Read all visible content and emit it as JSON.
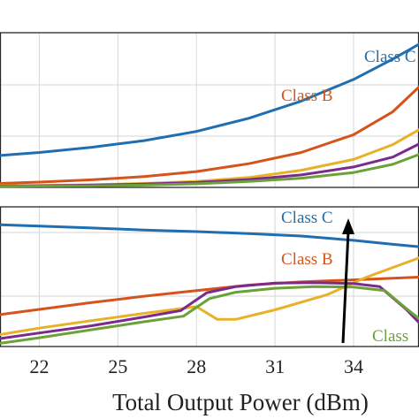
{
  "chart_data": [
    {
      "type": "line",
      "panel": "top",
      "xlabel": "Total Output Power (dBm)",
      "xlim": [
        20.5,
        36.5
      ],
      "ylim": [
        0,
        4.7
      ],
      "xticks": [
        22,
        25,
        28,
        31,
        34
      ],
      "grid": true,
      "series": [
        {
          "name": "Class C",
          "color": "#1f6eb0",
          "x": [
            20.5,
            22,
            24,
            26,
            28,
            30,
            32,
            34,
            35.5,
            36.5
          ],
          "y": [
            0.97,
            1.06,
            1.22,
            1.42,
            1.7,
            2.1,
            2.62,
            3.28,
            3.9,
            4.35
          ]
        },
        {
          "name": "Class B",
          "color": "#d4541c",
          "x": [
            20.5,
            22,
            24,
            26,
            28,
            30,
            32,
            34,
            35.5,
            36.5
          ],
          "y": [
            0.12,
            0.16,
            0.23,
            0.33,
            0.48,
            0.72,
            1.06,
            1.6,
            2.3,
            3.05
          ]
        },
        {
          "name": "",
          "color": "#e8b128",
          "x": [
            20.5,
            22,
            24,
            26,
            28,
            30,
            32,
            34,
            35.5,
            36.5
          ],
          "y": [
            0.05,
            0.06,
            0.08,
            0.12,
            0.18,
            0.3,
            0.52,
            0.85,
            1.3,
            1.75
          ]
        },
        {
          "name": "",
          "color": "#7a2b8c",
          "x": [
            20.5,
            22,
            24,
            26,
            28,
            30,
            32,
            34,
            35.5,
            36.5
          ],
          "y": [
            0.04,
            0.05,
            0.07,
            0.1,
            0.15,
            0.24,
            0.38,
            0.62,
            0.92,
            1.32
          ]
        },
        {
          "name": "",
          "color": "#6aa237",
          "x": [
            20.5,
            22,
            24,
            26,
            28,
            30,
            32,
            34,
            35.5,
            36.5
          ],
          "y": [
            0.03,
            0.04,
            0.05,
            0.07,
            0.11,
            0.18,
            0.28,
            0.45,
            0.7,
            1.0
          ]
        }
      ],
      "annotations": [
        "Class C",
        "Class B"
      ]
    },
    {
      "type": "line",
      "panel": "bottom",
      "xlabel": "Total Output Power (dBm)",
      "xlim": [
        20.5,
        36.5
      ],
      "ylim": [
        0,
        3.5
      ],
      "xticks": [
        22,
        25,
        28,
        31,
        34
      ],
      "grid": true,
      "series": [
        {
          "name": "Class C",
          "color": "#1f6eb0",
          "x": [
            20.5,
            22,
            24,
            26,
            28,
            30,
            32,
            34,
            35.5,
            36.5
          ],
          "y": [
            3.05,
            3.02,
            2.97,
            2.92,
            2.88,
            2.83,
            2.77,
            2.66,
            2.56,
            2.5
          ]
        },
        {
          "name": "Class B",
          "color": "#d4541c",
          "x": [
            20.5,
            22,
            24,
            26,
            28,
            30,
            32,
            34,
            35.5,
            36.5
          ],
          "y": [
            0.8,
            0.93,
            1.1,
            1.26,
            1.4,
            1.54,
            1.62,
            1.67,
            1.71,
            1.74
          ]
        },
        {
          "name": "",
          "color": "#e8b128",
          "x": [
            20.5,
            22,
            24,
            26,
            28,
            28.8,
            29.5,
            31,
            33,
            34.5,
            35.5,
            36.5
          ],
          "y": [
            0.3,
            0.46,
            0.65,
            0.83,
            1.0,
            0.68,
            0.68,
            0.92,
            1.3,
            1.74,
            1.98,
            2.22
          ]
        },
        {
          "name": "",
          "color": "#7a2b8c",
          "x": [
            20.5,
            22,
            24,
            26,
            27.4,
            28.4,
            29.5,
            31,
            32.5,
            34,
            35,
            36,
            36.5
          ],
          "y": [
            0.2,
            0.34,
            0.52,
            0.74,
            0.9,
            1.35,
            1.5,
            1.59,
            1.6,
            1.58,
            1.5,
            0.94,
            0.6
          ]
        },
        {
          "name": "Class",
          "color": "#6aa237",
          "x": [
            20.5,
            22,
            24,
            26,
            27.5,
            28.5,
            29.5,
            31,
            32.5,
            34,
            35.2,
            36,
            36.5
          ],
          "y": [
            0.08,
            0.22,
            0.42,
            0.62,
            0.76,
            1.2,
            1.36,
            1.46,
            1.5,
            1.49,
            1.4,
            0.96,
            0.7
          ]
        }
      ],
      "annotations": [
        "Class C",
        "Class B",
        "Class"
      ]
    }
  ]
}
